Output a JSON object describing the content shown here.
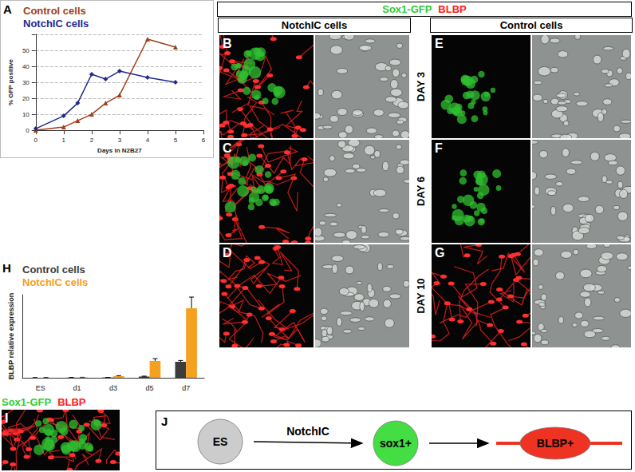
{
  "chart_data": [
    {
      "panel": "A",
      "type": "line",
      "x_label": "Days in N2B27",
      "y_label": "% GFP positive",
      "xlim": [
        0,
        6
      ],
      "xticks": [
        0,
        1,
        2,
        3,
        4,
        5,
        6
      ],
      "ylim": [
        0,
        60
      ],
      "yticks": [
        0,
        10,
        20,
        30,
        40,
        50
      ],
      "grid": true,
      "legend": "upper left",
      "series": [
        {
          "name": "Control cells",
          "color": "#a0401a",
          "marker": "triangle",
          "x": [
            0,
            1,
            1.5,
            2,
            2.5,
            3,
            4,
            5
          ],
          "values": [
            0,
            2,
            6,
            10,
            17,
            22,
            57,
            52
          ]
        },
        {
          "name": "NotchIC cells",
          "color": "#1f2a8f",
          "marker": "diamond",
          "x": [
            0,
            1,
            1.5,
            2,
            2.5,
            3,
            4,
            5
          ],
          "values": [
            1,
            9,
            17,
            35,
            32,
            37,
            33,
            30
          ]
        }
      ]
    },
    {
      "panel": "H",
      "type": "bar",
      "y_label": "BLBP relative expression",
      "categories": [
        "ES",
        "d1",
        "d3",
        "d5",
        "d7"
      ],
      "ylim": [
        0,
        5.2
      ],
      "tick_labels": "x",
      "legend": "upper left",
      "series": [
        {
          "name": "Control cells",
          "color": "#3c3c3c",
          "values": [
            0,
            0.01,
            0.02,
            0.08,
            1.0
          ],
          "errors": [
            0,
            0,
            0,
            0.02,
            0.08
          ]
        },
        {
          "name": "NotchIC cells",
          "color": "#f5a01e",
          "values": [
            0,
            0.02,
            0.1,
            1.05,
            4.35
          ],
          "errors": [
            0,
            0.01,
            0.03,
            0.15,
            0.7
          ]
        }
      ]
    }
  ],
  "micrographs": {
    "header": [
      {
        "text": "Sox1-GFP",
        "color": "#33cc33"
      },
      {
        "text": "BLBP",
        "color": "#ff2020"
      }
    ],
    "columns": [
      "NotchIC cells",
      "Control cells"
    ],
    "rows": [
      "DAY 3",
      "DAY 6",
      "DAY 10"
    ],
    "panels": [
      [
        "B",
        "C",
        "D"
      ],
      [
        "E",
        "F",
        "G"
      ]
    ]
  },
  "panel_I": {
    "letter": "I",
    "labels": [
      {
        "text": "Sox1-GFP",
        "color": "#33cc33"
      },
      {
        "text": "BLBP",
        "color": "#ff2020"
      }
    ]
  },
  "diagram": {
    "letter": "J",
    "nodes": [
      {
        "label": "ES",
        "color": "#cccccc"
      },
      {
        "label": "sox1+",
        "color": "#44dd44"
      },
      {
        "label": "BLBP+",
        "color": "#ee3322"
      }
    ],
    "edges": [
      {
        "from": 0,
        "to": 1,
        "label": "NotchIC"
      },
      {
        "from": 1,
        "to": 2
      }
    ]
  }
}
